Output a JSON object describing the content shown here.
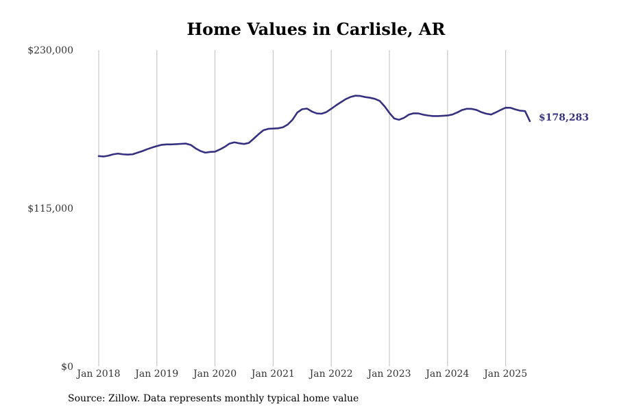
{
  "chart_data": {
    "type": "line",
    "title": "Home Values in Carlisle, AR",
    "xlabel": "",
    "ylabel": "",
    "source": "Source: Zillow. Data represents monthly typical home value",
    "x_ticks": [
      "Jan 2018",
      "Jan 2019",
      "Jan 2020",
      "Jan 2021",
      "Jan 2022",
      "Jan 2023",
      "Jan 2024",
      "Jan 2025"
    ],
    "y_ticks": [
      {
        "value": 0,
        "label": "$0"
      },
      {
        "value": 115000,
        "label": "$115,000"
      },
      {
        "value": 230000,
        "label": "$230,000"
      }
    ],
    "ylim": [
      0,
      230000
    ],
    "xlim": [
      "2018-01",
      "2025-08"
    ],
    "grid": "vertical",
    "line_color": "#35307f",
    "end_label": "$178,283",
    "series": [
      {
        "start": "2018-01",
        "values": [
          152900,
          152600,
          153200,
          154200,
          154700,
          154200,
          154000,
          154200,
          155400,
          156500,
          157900,
          159100,
          160200,
          161100,
          161400,
          161400,
          161600,
          161800,
          162000,
          161000,
          158500,
          156600,
          155400,
          155900,
          156100,
          157700,
          159600,
          162000,
          162900,
          162200,
          161700,
          162500,
          165600,
          168800,
          171700,
          172700,
          172900,
          173100,
          173800,
          175800,
          179300,
          184600,
          187000,
          187400,
          185300,
          183900,
          183700,
          184900,
          187300,
          189800,
          192100,
          194300,
          195900,
          196800,
          196600,
          195800,
          195300,
          194500,
          193000,
          189100,
          184300,
          180200,
          179300,
          180700,
          183000,
          184000,
          183900,
          183000,
          182400,
          182000,
          182000,
          182200,
          182400,
          183100,
          184600,
          186400,
          187300,
          187200,
          186400,
          184800,
          183700,
          183100,
          184700,
          186500,
          188100,
          188000,
          186800,
          185900,
          185600,
          178283
        ]
      }
    ]
  }
}
